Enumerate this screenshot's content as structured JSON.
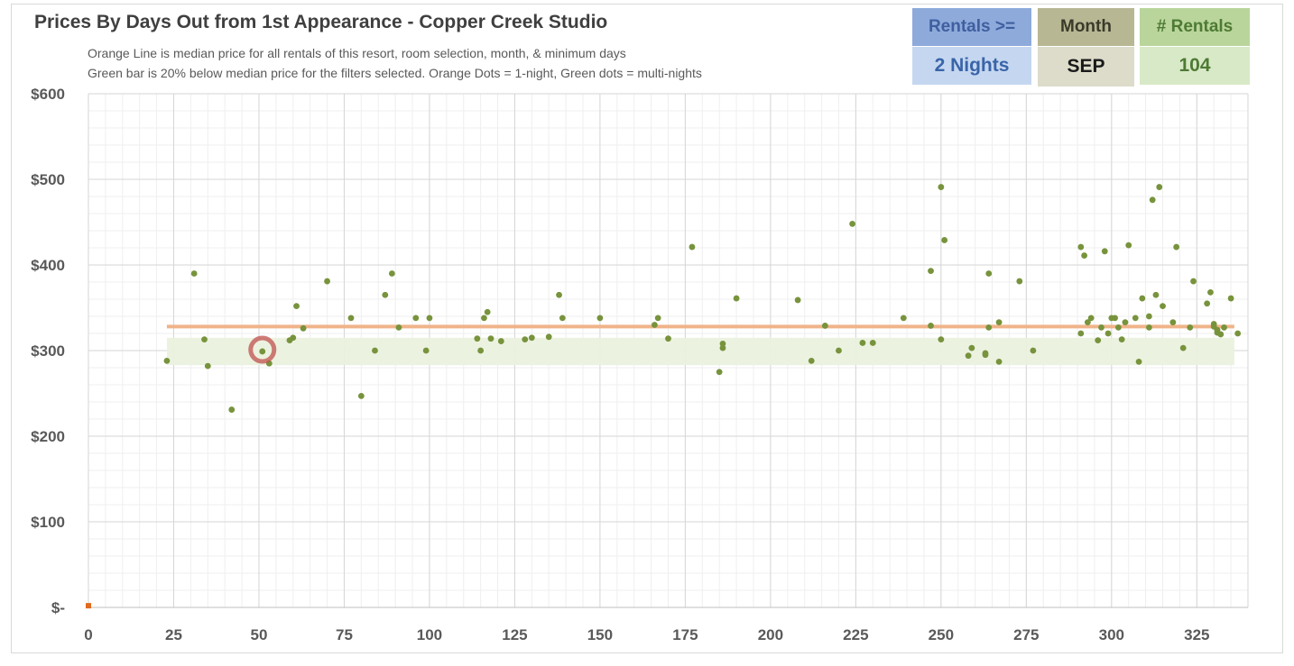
{
  "header": {
    "title": "Prices By Days Out from 1st Appearance - Copper Creek Studio",
    "subtitle_line1": "Orange Line is median price for all rentals of this resort, room selection, month, & minimum days",
    "subtitle_line2": "Green bar is 20% below median price for the filters selected. Orange Dots = 1-night, Green dots = multi-nights"
  },
  "filters": {
    "rentals": {
      "label": "Rentals >=",
      "value": "2 Nights",
      "label_bg": "#8eaadb",
      "value_bg": "#c5d7f0",
      "label_color": "#3f5f9f",
      "value_color": "#3a64a8"
    },
    "month": {
      "label": "Month",
      "value": "SEP",
      "label_bg": "#b8b794",
      "value_bg": "#dddccb",
      "label_color": "#3a3a2a",
      "value_color": "#1a1a1a"
    },
    "count": {
      "label": "# Rentals",
      "value": "104",
      "label_bg": "#b9d59b",
      "value_bg": "#d8e9c7",
      "label_color": "#4e7a34",
      "value_color": "#4e7a34"
    }
  },
  "chart_data": {
    "type": "scatter",
    "title": "Prices By Days Out from 1st Appearance - Copper Creek Studio",
    "xlabel": "",
    "ylabel": "",
    "xlim": [
      0,
      340
    ],
    "ylim": [
      0,
      600
    ],
    "x_ticks": [
      0,
      25,
      50,
      75,
      100,
      125,
      150,
      175,
      200,
      225,
      250,
      275,
      300,
      325
    ],
    "y_ticks": [
      0,
      100,
      200,
      300,
      400,
      500,
      600
    ],
    "y_tick_labels": [
      "$-",
      "$100",
      "$200",
      "$300",
      "$400",
      "$500",
      "$600"
    ],
    "grid": true,
    "median_line": {
      "value": 328,
      "x_start": 23,
      "x_end": 336,
      "color": "#f0b48a"
    },
    "band": {
      "y_low": 283,
      "y_high": 315,
      "x_start": 23,
      "x_end": 336,
      "color": "#ebf1de"
    },
    "highlight": {
      "x": 51,
      "y": 301,
      "color": "#c0504d"
    },
    "series": [
      {
        "name": "Orange Dots = 1-night",
        "color": "#e06b1f",
        "marker": "square",
        "points": [
          [
            0,
            2
          ]
        ]
      },
      {
        "name": "Green dots = multi-nights",
        "color": "#77933c",
        "marker": "circle",
        "points": [
          [
            23,
            288
          ],
          [
            31,
            390
          ],
          [
            34,
            313
          ],
          [
            35,
            282
          ],
          [
            42,
            231
          ],
          [
            51,
            299
          ],
          [
            53,
            285
          ],
          [
            59,
            312
          ],
          [
            60,
            315
          ],
          [
            61,
            352
          ],
          [
            63,
            326
          ],
          [
            70,
            381
          ],
          [
            77,
            338
          ],
          [
            80,
            247
          ],
          [
            84,
            300
          ],
          [
            87,
            365
          ],
          [
            89,
            390
          ],
          [
            91,
            327
          ],
          [
            96,
            338
          ],
          [
            99,
            300
          ],
          [
            100,
            338
          ],
          [
            114,
            314
          ],
          [
            115,
            300
          ],
          [
            116,
            338
          ],
          [
            117,
            345
          ],
          [
            118,
            314
          ],
          [
            121,
            311
          ],
          [
            128,
            313
          ],
          [
            130,
            315
          ],
          [
            135,
            316
          ],
          [
            138,
            365
          ],
          [
            139,
            338
          ],
          [
            150,
            338
          ],
          [
            166,
            330
          ],
          [
            167,
            338
          ],
          [
            170,
            314
          ],
          [
            177,
            421
          ],
          [
            185,
            275
          ],
          [
            186,
            308
          ],
          [
            186,
            303
          ],
          [
            190,
            361
          ],
          [
            208,
            359
          ],
          [
            212,
            288
          ],
          [
            216,
            329
          ],
          [
            220,
            300
          ],
          [
            224,
            448
          ],
          [
            227,
            309
          ],
          [
            230,
            309
          ],
          [
            239,
            338
          ],
          [
            247,
            393
          ],
          [
            247,
            329
          ],
          [
            250,
            491
          ],
          [
            250,
            313
          ],
          [
            251,
            429
          ],
          [
            258,
            294
          ],
          [
            259,
            303
          ],
          [
            263,
            297
          ],
          [
            263,
            295
          ],
          [
            264,
            327
          ],
          [
            264,
            390
          ],
          [
            267,
            333
          ],
          [
            267,
            287
          ],
          [
            273,
            381
          ],
          [
            277,
            300
          ],
          [
            291,
            421
          ],
          [
            291,
            320
          ],
          [
            292,
            411
          ],
          [
            293,
            333
          ],
          [
            294,
            338
          ],
          [
            296,
            312
          ],
          [
            297,
            327
          ],
          [
            298,
            416
          ],
          [
            299,
            320
          ],
          [
            300,
            338
          ],
          [
            301,
            338
          ],
          [
            302,
            327
          ],
          [
            303,
            313
          ],
          [
            304,
            333
          ],
          [
            305,
            423
          ],
          [
            307,
            338
          ],
          [
            308,
            287
          ],
          [
            309,
            361
          ],
          [
            311,
            340
          ],
          [
            311,
            327
          ],
          [
            312,
            476
          ],
          [
            313,
            365
          ],
          [
            314,
            491
          ],
          [
            315,
            352
          ],
          [
            318,
            333
          ],
          [
            319,
            421
          ],
          [
            321,
            303
          ],
          [
            323,
            327
          ],
          [
            324,
            381
          ],
          [
            328,
            355
          ],
          [
            329,
            368
          ],
          [
            330,
            331
          ],
          [
            330,
            328
          ],
          [
            331,
            324
          ],
          [
            331,
            321
          ],
          [
            332,
            319
          ],
          [
            333,
            327
          ],
          [
            335,
            361
          ],
          [
            337,
            320
          ]
        ]
      }
    ]
  }
}
